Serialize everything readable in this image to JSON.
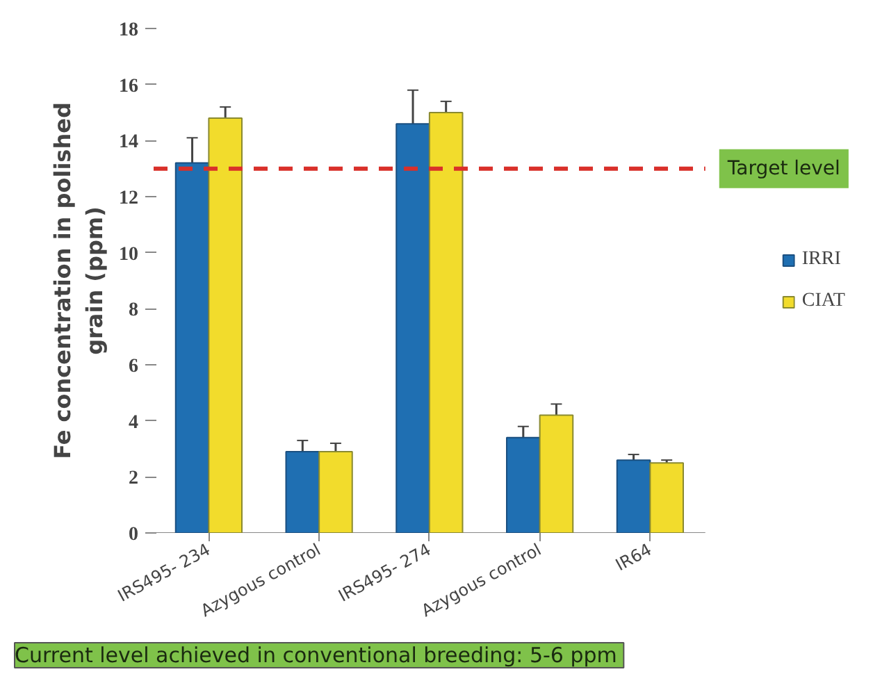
{
  "chart_data": {
    "type": "bar",
    "ylabel": "Fe concentration in polished\ngrain (ppm)",
    "categories": [
      "IRS495- 234",
      "Azygous control",
      "IRS495- 274",
      "Azygous control",
      "IR64"
    ],
    "series": [
      {
        "name": "IRRI",
        "color": "#1f6fb2",
        "values": [
          13.2,
          2.9,
          14.6,
          3.4,
          2.6
        ],
        "errors": [
          0.9,
          0.4,
          1.2,
          0.4,
          0.2
        ]
      },
      {
        "name": "CIAT",
        "color": "#f2dc2c",
        "values": [
          14.8,
          2.9,
          15.0,
          4.2,
          2.5
        ],
        "errors": [
          0.4,
          0.3,
          0.4,
          0.4,
          0.1
        ]
      }
    ],
    "ylim": [
      0,
      18
    ],
    "yticks": [
      0,
      2,
      4,
      6,
      8,
      10,
      12,
      14,
      16,
      18
    ],
    "grid": false,
    "legend": "right",
    "ref_lines": [
      {
        "axis": "y",
        "value": 13,
        "label": "Target level",
        "color": "#d9302a",
        "line_style": "dashed"
      }
    ],
    "annotations": [
      "Current level achieved  in conventional breeding: 5-6 ppm"
    ]
  }
}
